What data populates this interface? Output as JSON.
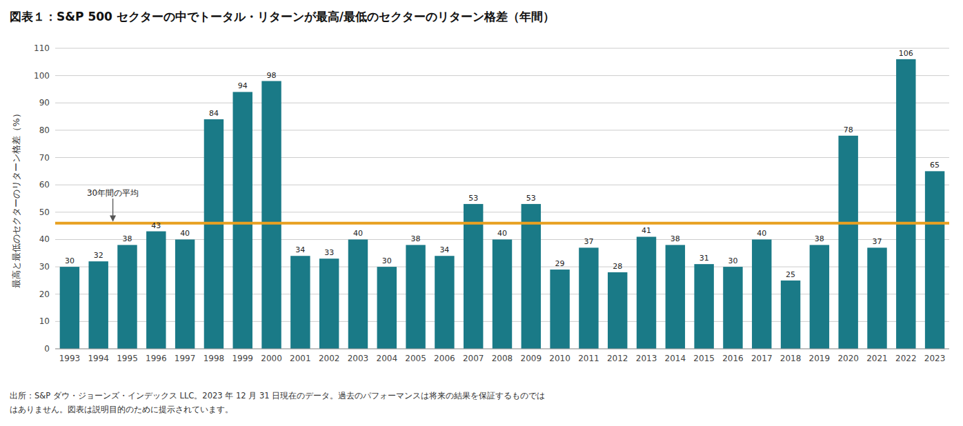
{
  "chart_data": {
    "type": "bar",
    "title": "図表１：S&P 500 セクターの中でトータル・リターンが最高/最低のセクターのリターン格差（年間）",
    "y_label": "最高と最低のセクターのリターン格差（%）",
    "categories": [
      "1993",
      "1994",
      "1995",
      "1996",
      "1997",
      "1998",
      "1999",
      "2000",
      "2001",
      "2002",
      "2003",
      "2004",
      "2005",
      "2006",
      "2007",
      "2008",
      "2009",
      "2010",
      "2011",
      "2012",
      "2013",
      "2014",
      "2015",
      "2016",
      "2017",
      "2018",
      "2019",
      "2020",
      "2021",
      "2022",
      "2023"
    ],
    "values": [
      30,
      32,
      38,
      43,
      40,
      84,
      94,
      98,
      34,
      33,
      40,
      30,
      38,
      34,
      53,
      40,
      53,
      29,
      37,
      28,
      41,
      38,
      31,
      30,
      40,
      25,
      38,
      78,
      37,
      106,
      65
    ],
    "color": "#1A7A87",
    "average": 46,
    "average_label": "30年間の平均",
    "average_color": "#E8A020",
    "ylim": [
      0,
      110
    ],
    "yticks": [
      0,
      10,
      20,
      30,
      40,
      50,
      60,
      70,
      80,
      90,
      100,
      110
    ],
    "grid": true,
    "data_labels": true,
    "source": [
      "出所：S&P ダウ・ジョーンズ・インデックス LLC。2023 年 12 月 31 日現在のデータ。過去のパフォーマンスは将来の結果を保証するものでは",
      "はありません。図表は説明目的のために提示されています。"
    ]
  }
}
